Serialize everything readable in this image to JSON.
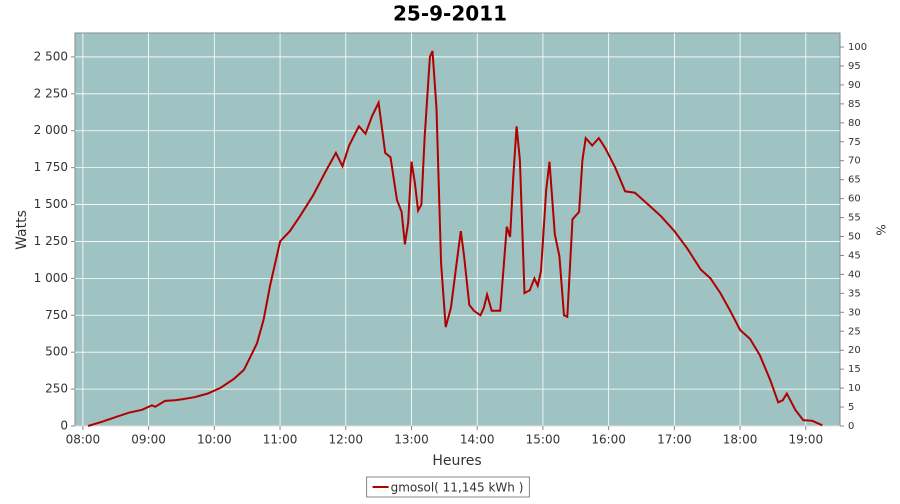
{
  "chart_data": {
    "type": "line",
    "title": "25-9-2011",
    "xlabel": "Heures",
    "ylabel": "Watts",
    "y2label": "%",
    "x": [
      8.08,
      8.3,
      8.5,
      8.7,
      8.9,
      9.05,
      9.1,
      9.25,
      9.4,
      9.5,
      9.7,
      9.9,
      10.1,
      10.3,
      10.45,
      10.55,
      10.65,
      10.75,
      10.85,
      11.0,
      11.15,
      11.3,
      11.5,
      11.7,
      11.85,
      11.95,
      12.05,
      12.2,
      12.3,
      12.4,
      12.5,
      12.6,
      12.68,
      12.78,
      12.85,
      12.9,
      12.95,
      13.0,
      13.05,
      13.1,
      13.15,
      13.2,
      13.28,
      13.32,
      13.38,
      13.45,
      13.52,
      13.6,
      13.7,
      13.75,
      13.8,
      13.88,
      13.95,
      14.05,
      14.1,
      14.15,
      14.22,
      14.35,
      14.45,
      14.5,
      14.55,
      14.6,
      14.65,
      14.72,
      14.8,
      14.87,
      14.92,
      14.97,
      15.05,
      15.1,
      15.18,
      15.25,
      15.32,
      15.37,
      15.45,
      15.55,
      15.6,
      15.65,
      15.75,
      15.85,
      15.95,
      16.1,
      16.25,
      16.4,
      16.6,
      16.8,
      17.0,
      17.2,
      17.4,
      17.55,
      17.7,
      17.85,
      18.0,
      18.15,
      18.3,
      18.46,
      18.58,
      18.65,
      18.71,
      18.84,
      18.96,
      19.1,
      19.25
    ],
    "series": [
      {
        "name": "gmosol( 11,145 kWh )",
        "color": "#b00000",
        "values": [
          0,
          30,
          60,
          90,
          110,
          140,
          130,
          170,
          175,
          180,
          195,
          220,
          260,
          320,
          380,
          470,
          560,
          720,
          955,
          1250,
          1320,
          1420,
          1560,
          1730,
          1850,
          1760,
          1900,
          2030,
          1980,
          2100,
          2190,
          1850,
          1820,
          1530,
          1450,
          1230,
          1380,
          1790,
          1650,
          1460,
          1500,
          1950,
          2500,
          2540,
          2150,
          1100,
          670,
          800,
          1150,
          1320,
          1150,
          820,
          780,
          750,
          800,
          890,
          780,
          780,
          1350,
          1280,
          1700,
          2030,
          1800,
          900,
          920,
          1000,
          950,
          1050,
          1600,
          1790,
          1300,
          1150,
          750,
          740,
          1400,
          1450,
          1800,
          1950,
          1900,
          1950,
          1880,
          1750,
          1590,
          1580,
          1500,
          1420,
          1320,
          1200,
          1060,
          1000,
          900,
          780,
          650,
          590,
          480,
          310,
          160,
          175,
          220,
          110,
          40,
          35,
          5
        ]
      }
    ],
    "xlim": [
      7.88,
      19.52
    ],
    "xticks": [
      {
        "value": 8,
        "label": "08:00"
      },
      {
        "value": 9,
        "label": "09:00"
      },
      {
        "value": 10,
        "label": "10:00"
      },
      {
        "value": 11,
        "label": "11:00"
      },
      {
        "value": 12,
        "label": "12:00"
      },
      {
        "value": 13,
        "label": "13:00"
      },
      {
        "value": 14,
        "label": "14:00"
      },
      {
        "value": 15,
        "label": "15:00"
      },
      {
        "value": 16,
        "label": "16:00"
      },
      {
        "value": 17,
        "label": "17:00"
      },
      {
        "value": 18,
        "label": "18:00"
      },
      {
        "value": 19,
        "label": "19:00"
      }
    ],
    "ylim": [
      0,
      2662
    ],
    "yticks": [
      0,
      250,
      500,
      750,
      {
        "value": 1000,
        "label": "1 000"
      },
      {
        "value": 1250,
        "label": "1 250"
      },
      {
        "value": 1500,
        "label": "1 500"
      },
      {
        "value": 1750,
        "label": "1 750"
      },
      {
        "value": 2000,
        "label": "2 000"
      },
      {
        "value": 2250,
        "label": "2 250"
      },
      {
        "value": 2500,
        "label": "2 500"
      }
    ],
    "y2lim": [
      0,
      103.7
    ],
    "y2ticks": [
      0,
      5,
      10,
      15,
      20,
      25,
      30,
      35,
      40,
      45,
      50,
      55,
      60,
      65,
      70,
      75,
      80,
      85,
      90,
      95,
      100
    ],
    "grid": true,
    "legend": "bottom",
    "background": "#9fc3c3"
  }
}
